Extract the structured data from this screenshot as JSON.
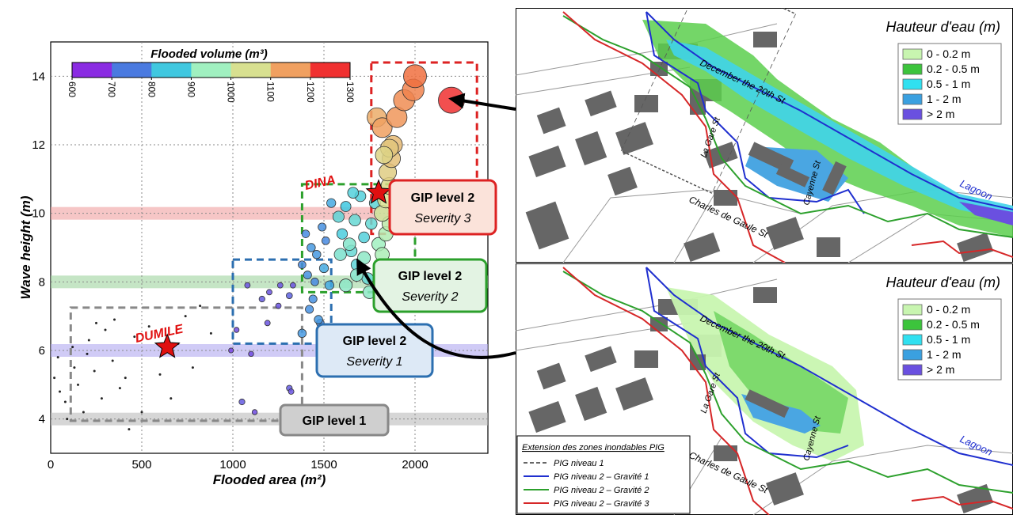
{
  "chart_data": {
    "type": "scatter",
    "xlabel": "Flooded area (m²)",
    "ylabel": "Wave height (m)",
    "xlim": [
      0,
      2400
    ],
    "ylim": [
      3,
      15
    ],
    "x_ticks": [
      "0",
      "500",
      "1000",
      "1500",
      "2000"
    ],
    "y_ticks": [
      "4",
      "6",
      "8",
      "10",
      "12",
      "14"
    ],
    "grid": true,
    "colorbar": {
      "title": "Flooded volume (m³)",
      "ticks": [
        "600",
        "700",
        "800",
        "900",
        "1000",
        "1100",
        "1200",
        "1300"
      ],
      "colors": [
        "#8a2be2",
        "#4a7ae0",
        "#40c8e0",
        "#a0f0c0",
        "#d8e090",
        "#f0a060",
        "#f03030"
      ]
    },
    "bands": [
      {
        "y": 4,
        "color": "#bbbbbb"
      },
      {
        "y": 6,
        "color": "#b0a8f0"
      },
      {
        "y": 8,
        "color": "#9fd49f"
      },
      {
        "y": 10,
        "color": "#f0a0a0"
      }
    ],
    "boxes": [
      {
        "name": "GIP level 1",
        "x": [
          110,
          1380
        ],
        "y": [
          3.95,
          7.25
        ],
        "color": "#888888"
      },
      {
        "name": "GIP level 2 Severity 1",
        "x": [
          1000,
          1540
        ],
        "y": [
          6.2,
          8.65
        ],
        "color": "#2c6fb0"
      },
      {
        "name": "GIP level 2 Severity 2",
        "x": [
          1380,
          2000
        ],
        "y": [
          7.7,
          10.85
        ],
        "color": "#2ca02c"
      },
      {
        "name": "GIP level 2 Severity 3",
        "x": [
          1760,
          2340
        ],
        "y": [
          9.4,
          14.4
        ],
        "color": "#dd2222"
      }
    ],
    "events": [
      {
        "name": "DUMILE",
        "x": 640,
        "y": 6.1
      },
      {
        "name": "DINA",
        "x": 1800,
        "y": 10.6
      }
    ],
    "points": [
      {
        "x": 20,
        "y": 5.2,
        "v": 600
      },
      {
        "x": 40,
        "y": 5.8,
        "v": 600
      },
      {
        "x": 50,
        "y": 4.8,
        "v": 600
      },
      {
        "x": 80,
        "y": 4.5,
        "v": 600
      },
      {
        "x": 120,
        "y": 6.1,
        "v": 600
      },
      {
        "x": 130,
        "y": 5.5,
        "v": 600
      },
      {
        "x": 150,
        "y": 5.0,
        "v": 600
      },
      {
        "x": 180,
        "y": 4.2,
        "v": 600
      },
      {
        "x": 210,
        "y": 6.3,
        "v": 600
      },
      {
        "x": 240,
        "y": 5.4,
        "v": 600
      },
      {
        "x": 280,
        "y": 4.6,
        "v": 600
      },
      {
        "x": 300,
        "y": 6.6,
        "v": 600
      },
      {
        "x": 340,
        "y": 5.7,
        "v": 600
      },
      {
        "x": 380,
        "y": 4.9,
        "v": 600
      },
      {
        "x": 410,
        "y": 5.2,
        "v": 600
      },
      {
        "x": 430,
        "y": 3.7,
        "v": 600
      },
      {
        "x": 460,
        "y": 6.4,
        "v": 600
      },
      {
        "x": 500,
        "y": 4.2,
        "v": 600
      },
      {
        "x": 540,
        "y": 6.7,
        "v": 600
      },
      {
        "x": 600,
        "y": 5.3,
        "v": 600
      },
      {
        "x": 660,
        "y": 4.6,
        "v": 600
      },
      {
        "x": 700,
        "y": 6.2,
        "v": 600
      },
      {
        "x": 740,
        "y": 7.0,
        "v": 600
      },
      {
        "x": 780,
        "y": 5.5,
        "v": 600
      },
      {
        "x": 820,
        "y": 7.3,
        "v": 600
      },
      {
        "x": 880,
        "y": 6.5,
        "v": 600
      },
      {
        "x": 200,
        "y": 5.9,
        "v": 600
      },
      {
        "x": 90,
        "y": 4.0,
        "v": 600
      },
      {
        "x": 350,
        "y": 6.9,
        "v": 600
      },
      {
        "x": 250,
        "y": 6.8,
        "v": 600
      },
      {
        "x": 1080,
        "y": 7.9,
        "v": 650
      },
      {
        "x": 1160,
        "y": 7.5,
        "v": 660
      },
      {
        "x": 1200,
        "y": 7.7,
        "v": 650
      },
      {
        "x": 1250,
        "y": 7.3,
        "v": 650
      },
      {
        "x": 1310,
        "y": 7.6,
        "v": 670
      },
      {
        "x": 1330,
        "y": 7.9,
        "v": 650
      },
      {
        "x": 1100,
        "y": 5.9,
        "v": 640
      },
      {
        "x": 990,
        "y": 6.0,
        "v": 630
      },
      {
        "x": 1050,
        "y": 4.5,
        "v": 660
      },
      {
        "x": 1120,
        "y": 4.2,
        "v": 640
      },
      {
        "x": 1310,
        "y": 4.9,
        "v": 660
      },
      {
        "x": 1320,
        "y": 4.8,
        "v": 650
      },
      {
        "x": 1020,
        "y": 6.6,
        "v": 640
      },
      {
        "x": 1190,
        "y": 6.8,
        "v": 650
      },
      {
        "x": 1260,
        "y": 7.9,
        "v": 650
      },
      {
        "x": 1380,
        "y": 8.5,
        "v": 720
      },
      {
        "x": 1400,
        "y": 9.4,
        "v": 720
      },
      {
        "x": 1410,
        "y": 8.2,
        "v": 730
      },
      {
        "x": 1430,
        "y": 9.0,
        "v": 740
      },
      {
        "x": 1440,
        "y": 7.5,
        "v": 730
      },
      {
        "x": 1460,
        "y": 8.8,
        "v": 740
      },
      {
        "x": 1480,
        "y": 6.8,
        "v": 720
      },
      {
        "x": 1490,
        "y": 9.6,
        "v": 730
      },
      {
        "x": 1500,
        "y": 8.4,
        "v": 760
      },
      {
        "x": 1520,
        "y": 6.4,
        "v": 730
      },
      {
        "x": 1380,
        "y": 6.5,
        "v": 740
      },
      {
        "x": 1420,
        "y": 7.2,
        "v": 730
      },
      {
        "x": 1450,
        "y": 8.0,
        "v": 720
      },
      {
        "x": 1470,
        "y": 6.9,
        "v": 740
      },
      {
        "x": 1510,
        "y": 9.2,
        "v": 720
      },
      {
        "x": 1530,
        "y": 7.9,
        "v": 760
      },
      {
        "x": 1540,
        "y": 10.3,
        "v": 760
      },
      {
        "x": 1580,
        "y": 9.9,
        "v": 830
      },
      {
        "x": 1600,
        "y": 9.4,
        "v": 810
      },
      {
        "x": 1620,
        "y": 10.2,
        "v": 800
      },
      {
        "x": 1650,
        "y": 8.9,
        "v": 840
      },
      {
        "x": 1670,
        "y": 9.8,
        "v": 840
      },
      {
        "x": 1680,
        "y": 8.5,
        "v": 830
      },
      {
        "x": 1700,
        "y": 10.5,
        "v": 820
      },
      {
        "x": 1720,
        "y": 9.3,
        "v": 820
      },
      {
        "x": 1740,
        "y": 8.1,
        "v": 840
      },
      {
        "x": 1760,
        "y": 9.7,
        "v": 840
      },
      {
        "x": 1780,
        "y": 10.3,
        "v": 830
      },
      {
        "x": 1660,
        "y": 10.6,
        "v": 820
      },
      {
        "x": 1590,
        "y": 8.8,
        "v": 860
      },
      {
        "x": 1620,
        "y": 7.9,
        "v": 880
      },
      {
        "x": 1640,
        "y": 9.1,
        "v": 870
      },
      {
        "x": 1720,
        "y": 8.7,
        "v": 880
      },
      {
        "x": 1750,
        "y": 7.7,
        "v": 880
      },
      {
        "x": 1680,
        "y": 8.2,
        "v": 870
      },
      {
        "x": 1800,
        "y": 9.1,
        "v": 900
      },
      {
        "x": 1820,
        "y": 8.8,
        "v": 920
      },
      {
        "x": 1840,
        "y": 9.4,
        "v": 930
      },
      {
        "x": 1860,
        "y": 9.7,
        "v": 950
      },
      {
        "x": 1820,
        "y": 10.0,
        "v": 980
      },
      {
        "x": 1840,
        "y": 10.4,
        "v": 1000
      },
      {
        "x": 1860,
        "y": 10.8,
        "v": 1010
      },
      {
        "x": 1850,
        "y": 11.2,
        "v": 1030
      },
      {
        "x": 1870,
        "y": 11.6,
        "v": 1050
      },
      {
        "x": 1880,
        "y": 12.0,
        "v": 1060
      },
      {
        "x": 1860,
        "y": 11.9,
        "v": 1040
      },
      {
        "x": 1830,
        "y": 11.7,
        "v": 1020
      },
      {
        "x": 1790,
        "y": 12.8,
        "v": 1080
      },
      {
        "x": 1820,
        "y": 12.5,
        "v": 1100
      },
      {
        "x": 1900,
        "y": 12.8,
        "v": 1120
      },
      {
        "x": 1940,
        "y": 13.3,
        "v": 1140
      },
      {
        "x": 1990,
        "y": 13.6,
        "v": 1160
      },
      {
        "x": 2000,
        "y": 14.0,
        "v": 1200
      },
      {
        "x": 2200,
        "y": 13.3,
        "v": 1300
      }
    ]
  },
  "labels": {
    "gip1": "GIP level 1",
    "gip2": "GIP level 2",
    "sev1": "Severity 1",
    "sev2": "Severity 2",
    "sev3": "Severity 3",
    "dumile": "DUMILE",
    "dina": "DINA"
  },
  "map_top": {
    "legend_title": "Hauteur d'eau (m)",
    "legend_items": [
      {
        "label": "0 - 0.2 m",
        "color": "#c8f5b0"
      },
      {
        "label": "0.2 - 0.5  m",
        "color": "#3cc43c"
      },
      {
        "label": "0.5 - 1  m",
        "color": "#30e0f0"
      },
      {
        "label": "1  - 2 m",
        "color": "#3aa0e0"
      },
      {
        "label": "> 2 m",
        "color": "#6a50e0"
      }
    ],
    "streets": [
      "December the 20th St",
      "La Gare St",
      "Cayenne St",
      "Charles de Gaule St",
      "Lagoon"
    ]
  },
  "map_bottom": {
    "legend_title": "Hauteur d'eau (m)",
    "legend_items": [
      {
        "label": "0 - 0.2 m",
        "color": "#c8f5b0"
      },
      {
        "label": "0.2 - 0.5  m",
        "color": "#3cc43c"
      },
      {
        "label": "0.5 - 1  m",
        "color": "#30e0f0"
      },
      {
        "label": "1  - 2 m",
        "color": "#3aa0e0"
      },
      {
        "label": "> 2 m",
        "color": "#6a50e0"
      }
    ],
    "streets": [
      "December the 20th St",
      "La Gare St",
      "Cayenne St",
      "Charles de Gaule St",
      "Lagoon"
    ],
    "extension": {
      "title": "Extension des zones inondables PIG",
      "items": [
        {
          "label": "PIG niveau 1",
          "color": "#666666",
          "dash": true
        },
        {
          "label": "PIG niveau 2 – Gravité 1",
          "color": "#1f2fcf",
          "dash": false
        },
        {
          "label": "PIG niveau 2 – Gravité 2",
          "color": "#2ca02c",
          "dash": false
        },
        {
          "label": "PIG niveau 2 – Gravité 3",
          "color": "#d62728",
          "dash": false
        }
      ]
    }
  }
}
